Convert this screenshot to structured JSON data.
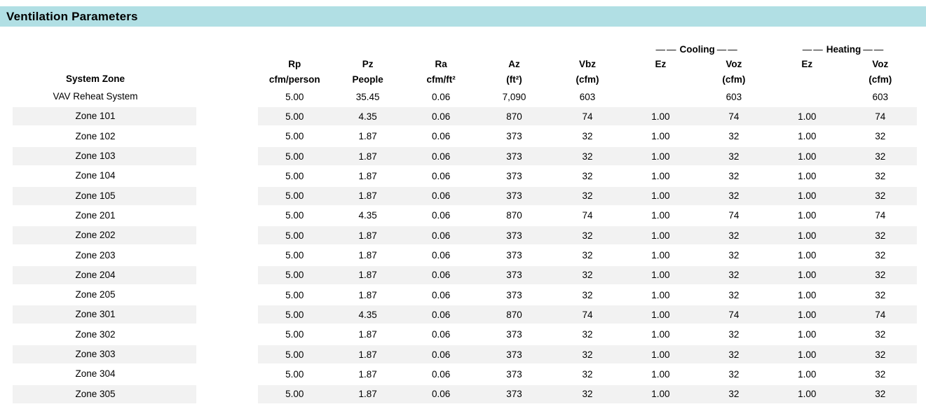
{
  "title": "Ventilation Parameters",
  "colors": {
    "title_bar_bg": "#b1dfe4",
    "stripe_bg": "#f2f2f2"
  },
  "table": {
    "zone_column_header": "System Zone",
    "group_dash": "——",
    "groups": [
      {
        "label": "Cooling"
      },
      {
        "label": "Heating"
      }
    ],
    "columns": [
      {
        "id": "rp",
        "line1": "Rp",
        "line2": "cfm/person"
      },
      {
        "id": "pz",
        "line1": "Pz",
        "line2": "People"
      },
      {
        "id": "ra",
        "line1": "Ra",
        "line2": "cfm/ft²"
      },
      {
        "id": "az",
        "line1": "Az",
        "line2": "(ft²)"
      },
      {
        "id": "vbz",
        "line1": "Vbz",
        "line2": "(cfm)"
      },
      {
        "id": "cooling_ez",
        "line1": "Ez",
        "line2": ""
      },
      {
        "id": "cooling_voz",
        "line1": "Voz",
        "line2": "(cfm)"
      },
      {
        "id": "heating_ez",
        "line1": "Ez",
        "line2": ""
      },
      {
        "id": "heating_voz",
        "line1": "Voz",
        "line2": "(cfm)"
      }
    ],
    "rows": [
      {
        "name": "VAV Reheat System",
        "values": [
          "5.00",
          "35.45",
          "0.06",
          "7,090",
          "603",
          "",
          "603",
          "",
          "603"
        ]
      },
      {
        "name": "Zone 101",
        "values": [
          "5.00",
          "4.35",
          "0.06",
          "870",
          "74",
          "1.00",
          "74",
          "1.00",
          "74"
        ]
      },
      {
        "name": "Zone 102",
        "values": [
          "5.00",
          "1.87",
          "0.06",
          "373",
          "32",
          "1.00",
          "32",
          "1.00",
          "32"
        ]
      },
      {
        "name": "Zone 103",
        "values": [
          "5.00",
          "1.87",
          "0.06",
          "373",
          "32",
          "1.00",
          "32",
          "1.00",
          "32"
        ]
      },
      {
        "name": "Zone 104",
        "values": [
          "5.00",
          "1.87",
          "0.06",
          "373",
          "32",
          "1.00",
          "32",
          "1.00",
          "32"
        ]
      },
      {
        "name": "Zone 105",
        "values": [
          "5.00",
          "1.87",
          "0.06",
          "373",
          "32",
          "1.00",
          "32",
          "1.00",
          "32"
        ]
      },
      {
        "name": "Zone 201",
        "values": [
          "5.00",
          "4.35",
          "0.06",
          "870",
          "74",
          "1.00",
          "74",
          "1.00",
          "74"
        ]
      },
      {
        "name": "Zone 202",
        "values": [
          "5.00",
          "1.87",
          "0.06",
          "373",
          "32",
          "1.00",
          "32",
          "1.00",
          "32"
        ]
      },
      {
        "name": "Zone 203",
        "values": [
          "5.00",
          "1.87",
          "0.06",
          "373",
          "32",
          "1.00",
          "32",
          "1.00",
          "32"
        ]
      },
      {
        "name": "Zone 204",
        "values": [
          "5.00",
          "1.87",
          "0.06",
          "373",
          "32",
          "1.00",
          "32",
          "1.00",
          "32"
        ]
      },
      {
        "name": "Zone 205",
        "values": [
          "5.00",
          "1.87",
          "0.06",
          "373",
          "32",
          "1.00",
          "32",
          "1.00",
          "32"
        ]
      },
      {
        "name": "Zone 301",
        "values": [
          "5.00",
          "4.35",
          "0.06",
          "870",
          "74",
          "1.00",
          "74",
          "1.00",
          "74"
        ]
      },
      {
        "name": "Zone 302",
        "values": [
          "5.00",
          "1.87",
          "0.06",
          "373",
          "32",
          "1.00",
          "32",
          "1.00",
          "32"
        ]
      },
      {
        "name": "Zone 303",
        "values": [
          "5.00",
          "1.87",
          "0.06",
          "373",
          "32",
          "1.00",
          "32",
          "1.00",
          "32"
        ]
      },
      {
        "name": "Zone 304",
        "values": [
          "5.00",
          "1.87",
          "0.06",
          "373",
          "32",
          "1.00",
          "32",
          "1.00",
          "32"
        ]
      },
      {
        "name": "Zone 305",
        "values": [
          "5.00",
          "1.87",
          "0.06",
          "373",
          "32",
          "1.00",
          "32",
          "1.00",
          "32"
        ]
      }
    ]
  }
}
